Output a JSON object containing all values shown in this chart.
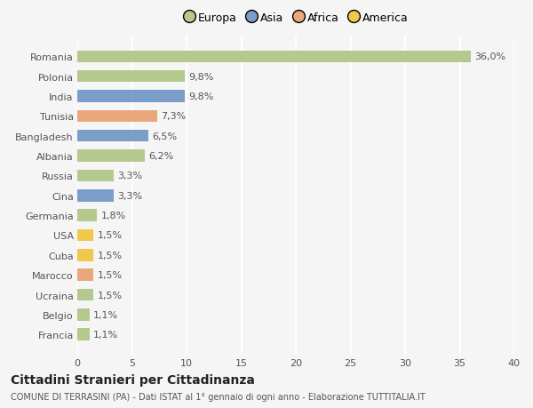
{
  "categories": [
    "Francia",
    "Belgio",
    "Ucraina",
    "Marocco",
    "Cuba",
    "USA",
    "Germania",
    "Cina",
    "Russia",
    "Albania",
    "Bangladesh",
    "Tunisia",
    "India",
    "Polonia",
    "Romania"
  ],
  "values": [
    1.1,
    1.1,
    1.5,
    1.5,
    1.5,
    1.5,
    1.8,
    3.3,
    3.3,
    6.2,
    6.5,
    7.3,
    9.8,
    9.8,
    36.0
  ],
  "colors": [
    "#b5c98e",
    "#b5c98e",
    "#b5c98e",
    "#e8a87c",
    "#f0c84a",
    "#f0c84a",
    "#b5c98e",
    "#7b9ec9",
    "#b5c98e",
    "#b5c98e",
    "#7b9ec9",
    "#e8a87c",
    "#7b9ec9",
    "#b5c98e",
    "#b5c98e"
  ],
  "labels": [
    "1,1%",
    "1,1%",
    "1,5%",
    "1,5%",
    "1,5%",
    "1,5%",
    "1,8%",
    "3,3%",
    "3,3%",
    "6,2%",
    "6,5%",
    "7,3%",
    "9,8%",
    "9,8%",
    "36,0%"
  ],
  "legend": [
    {
      "label": "Europa",
      "color": "#b5c98e"
    },
    {
      "label": "Asia",
      "color": "#7b9ec9"
    },
    {
      "label": "Africa",
      "color": "#e8a87c"
    },
    {
      "label": "America",
      "color": "#f0c84a"
    }
  ],
  "xlim": [
    0,
    40
  ],
  "xticks": [
    0,
    5,
    10,
    15,
    20,
    25,
    30,
    35,
    40
  ],
  "title": "Cittadini Stranieri per Cittadinanza",
  "subtitle": "COMUNE DI TERRASINI (PA) - Dati ISTAT al 1° gennaio di ogni anno - Elaborazione TUTTITALIA.IT",
  "bg_color": "#f5f5f5",
  "grid_color": "#ffffff",
  "bar_height": 0.6,
  "label_fontsize": 8,
  "ytick_fontsize": 8,
  "xtick_fontsize": 8,
  "title_fontsize": 10,
  "subtitle_fontsize": 7
}
